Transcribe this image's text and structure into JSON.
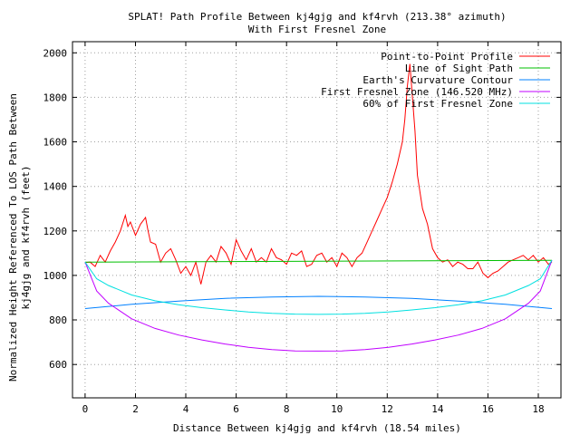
{
  "chart_data": {
    "type": "line",
    "title": "SPLAT! Path Profile Between kj4gjg and kf4rvh (213.38° azimuth)",
    "subtitle": "With First Fresnel Zone",
    "xlabel": "Distance Between kj4gjg and kf4rvh (18.54 miles)",
    "ylabel_lines": [
      "Normalized Height Referenced To LOS Path Between",
      "kj4gjg and kf4rvh (feet)"
    ],
    "xlim": [
      -0.5,
      18.9
    ],
    "ylim": [
      450,
      2050
    ],
    "x_ticks": [
      0,
      2,
      4,
      6,
      8,
      10,
      12,
      14,
      16,
      18
    ],
    "y_ticks": [
      600,
      800,
      1000,
      1200,
      1400,
      1600,
      1800,
      2000
    ],
    "grid": true,
    "legend_position": "top-right",
    "series": [
      {
        "name": "Point-to-Point Profile",
        "color": "#ff0000",
        "x": [
          0,
          0.2,
          0.4,
          0.6,
          0.8,
          1.0,
          1.2,
          1.4,
          1.6,
          1.7,
          1.8,
          2.0,
          2.2,
          2.4,
          2.5,
          2.6,
          2.8,
          3.0,
          3.2,
          3.4,
          3.6,
          3.8,
          4.0,
          4.2,
          4.4,
          4.6,
          4.8,
          5.0,
          5.2,
          5.4,
          5.6,
          5.8,
          6.0,
          6.2,
          6.4,
          6.6,
          6.8,
          7.0,
          7.2,
          7.4,
          7.6,
          7.8,
          8.0,
          8.2,
          8.4,
          8.6,
          8.8,
          9.0,
          9.2,
          9.4,
          9.6,
          9.8,
          10.0,
          10.2,
          10.4,
          10.6,
          10.8,
          11.0,
          11.2,
          11.4,
          11.6,
          11.8,
          12.0,
          12.2,
          12.4,
          12.6,
          12.7,
          12.8,
          12.9,
          13.0,
          13.1,
          13.2,
          13.4,
          13.6,
          13.8,
          14.0,
          14.2,
          14.4,
          14.6,
          14.8,
          15.0,
          15.2,
          15.4,
          15.6,
          15.8,
          16.0,
          16.2,
          16.4,
          16.6,
          16.8,
          17.0,
          17.2,
          17.4,
          17.6,
          17.8,
          18.0,
          18.2,
          18.4,
          18.54
        ],
        "y": [
          1058,
          1060,
          1040,
          1090,
          1060,
          1110,
          1150,
          1200,
          1270,
          1220,
          1240,
          1180,
          1230,
          1260,
          1200,
          1150,
          1140,
          1060,
          1100,
          1120,
          1070,
          1010,
          1040,
          1000,
          1060,
          960,
          1060,
          1090,
          1060,
          1130,
          1100,
          1050,
          1160,
          1110,
          1070,
          1120,
          1060,
          1080,
          1060,
          1120,
          1080,
          1070,
          1050,
          1100,
          1090,
          1110,
          1040,
          1050,
          1090,
          1100,
          1060,
          1080,
          1040,
          1100,
          1080,
          1040,
          1080,
          1100,
          1150,
          1200,
          1250,
          1300,
          1350,
          1420,
          1500,
          1600,
          1700,
          1850,
          1950,
          1800,
          1650,
          1450,
          1300,
          1230,
          1120,
          1080,
          1060,
          1070,
          1040,
          1060,
          1050,
          1030,
          1030,
          1060,
          1010,
          990,
          1010,
          1020,
          1040,
          1060,
          1070,
          1080,
          1090,
          1070,
          1090,
          1060,
          1080,
          1050,
          1060
        ]
      },
      {
        "name": "Line of Sight Path",
        "color": "#00c000",
        "x": [
          0,
          18.54
        ],
        "y": [
          1060,
          1068
        ]
      },
      {
        "name": "Earth's Curvature Contour",
        "color": "#0080ff",
        "x": [
          0,
          1.85,
          3.71,
          5.56,
          7.42,
          9.27,
          11.12,
          12.98,
          14.83,
          16.69,
          18.54
        ],
        "y": [
          851,
          870,
          885,
          897,
          903,
          906,
          903,
          897,
          885,
          870,
          851
        ]
      },
      {
        "name": "First Fresnel Zone (146.520 MHz)",
        "color": "#c000ff",
        "x": [
          0,
          0.46,
          0.93,
          1.85,
          2.78,
          3.71,
          4.64,
          5.56,
          6.49,
          7.42,
          8.34,
          9.27,
          10.2,
          11.12,
          12.05,
          12.98,
          13.9,
          14.83,
          15.76,
          16.69,
          17.61,
          18.08,
          18.54
        ],
        "y": [
          1060,
          930,
          875,
          805,
          762,
          732,
          710,
          692,
          677,
          667,
          661,
          660,
          661,
          667,
          677,
          692,
          710,
          732,
          762,
          805,
          875,
          930,
          1068
        ]
      },
      {
        "name": "60% of First Fresnel Zone",
        "color": "#00e0e0",
        "x": [
          0,
          0.46,
          0.93,
          1.85,
          2.78,
          3.71,
          4.64,
          5.56,
          6.49,
          7.42,
          8.34,
          9.27,
          10.2,
          11.12,
          12.05,
          12.98,
          13.9,
          14.83,
          15.76,
          16.69,
          17.61,
          18.08,
          18.54
        ],
        "y": [
          1060,
          985,
          955,
          912,
          886,
          868,
          855,
          845,
          836,
          830,
          826,
          825,
          826,
          830,
          836,
          845,
          855,
          868,
          886,
          912,
          955,
          985,
          1068
        ]
      }
    ]
  }
}
